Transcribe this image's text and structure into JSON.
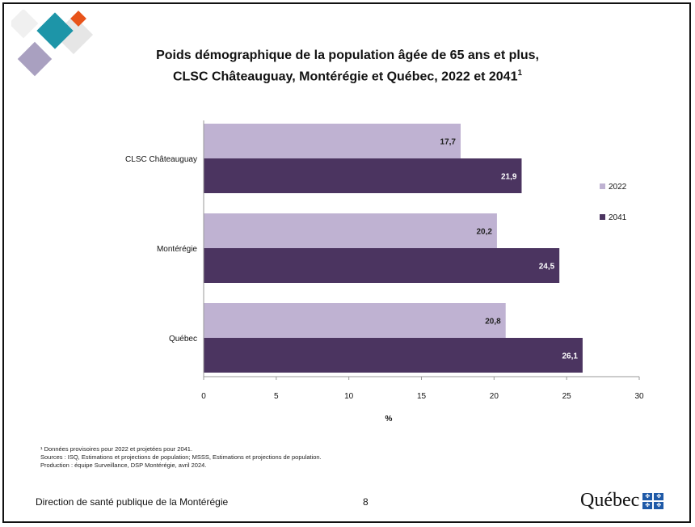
{
  "title_line1": "Poids démographique de la population âgée de 65 ans et plus,",
  "title_line2": "CLSC Châteauguay, Montérégie et Québec, 2022 et 2041",
  "title_sup": "1",
  "notes": [
    "¹ Données provisoires pour 2022 et projetées pour 2041.",
    "Sources : ISQ, Estimations et projections de population; MSSS, Estimations et projections de population.",
    "Production : équipe Surveillance, DSP Montérégie, avril 2024."
  ],
  "footer_left": "Direction de santé publique de la Montérégie",
  "page_number": "8",
  "quebec_logo_text": "Québec",
  "colors": {
    "series_2022": "#bfb2d2",
    "series_2041": "#4b3460",
    "deco_teal": "#1d95a8",
    "deco_orange": "#e8541a",
    "deco_purple": "#a9a0c0",
    "deco_gray": "#e4e4e4"
  },
  "chart_data": {
    "type": "bar",
    "orientation": "horizontal",
    "categories": [
      "CLSC Châteauguay",
      "Montérégie",
      "Québec"
    ],
    "series": [
      {
        "name": "2022",
        "values": [
          17.7,
          20.2,
          20.8
        ],
        "labels": [
          "17,7",
          "20,2",
          "20,8"
        ]
      },
      {
        "name": "2041",
        "values": [
          21.9,
          24.5,
          26.1
        ],
        "labels": [
          "21,9",
          "24,5",
          "26,1"
        ]
      }
    ],
    "xlabel": "%",
    "xlim": [
      0,
      30
    ],
    "xticks": [
      "0",
      "5",
      "10",
      "15",
      "20",
      "25",
      "30"
    ],
    "legend": "right",
    "grid": false
  }
}
